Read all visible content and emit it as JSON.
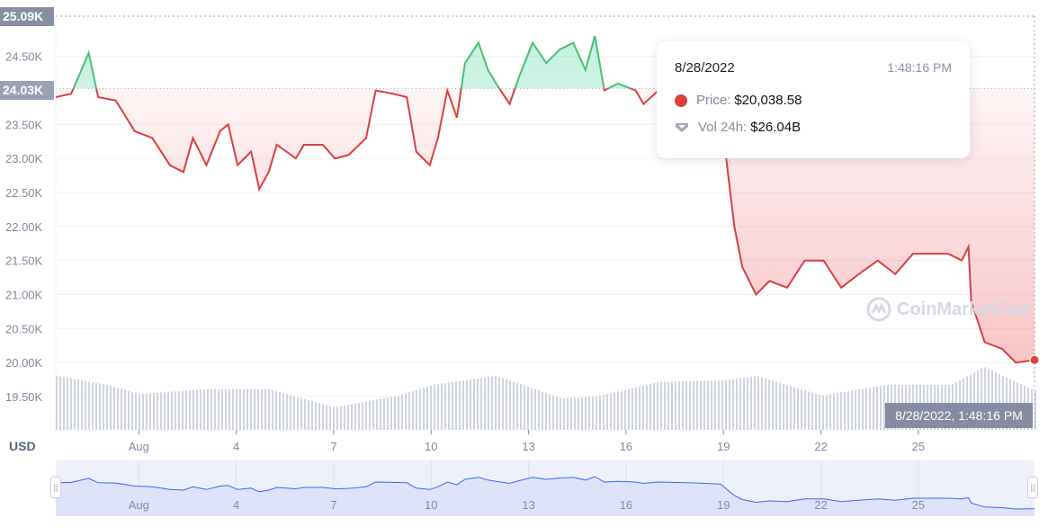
{
  "chart_data": {
    "type": "line",
    "currency_label": "USD",
    "y_ticks": [
      "19.50K",
      "20.00K",
      "20.50K",
      "21.00K",
      "21.50K",
      "22.00K",
      "22.50K",
      "23.00K",
      "23.50K",
      "24.50K"
    ],
    "y_tick_values": [
      19500,
      20000,
      20500,
      21000,
      21500,
      22000,
      22500,
      23000,
      23500,
      24500
    ],
    "ylim": [
      19300,
      25090
    ],
    "y_max_label": "25.09K",
    "y_max": 25090,
    "y_ref_label": "24.03K",
    "y_ref": 24030,
    "x_ticks": [
      "Aug",
      "4",
      "7",
      "10",
      "13",
      "16",
      "19",
      "22",
      "25"
    ],
    "x_tick_dates": [
      "2022-08-01",
      "2022-08-04",
      "2022-08-07",
      "2022-08-10",
      "2022-08-13",
      "2022-08-16",
      "2022-08-19",
      "2022-08-22",
      "2022-08-25"
    ],
    "xlim": [
      "2022-07-29T10:40",
      "2022-08-28T13:48"
    ],
    "colors": {
      "above": "#16c784",
      "below": "#ea3943",
      "volume": "#cfd3de",
      "navigator": "#3861fb"
    },
    "price": {
      "x": [
        "2022-07-29T10:40",
        "2022-07-29T22:00",
        "2022-07-30T11:00",
        "2022-07-30T18:00",
        "2022-07-31T07:00",
        "2022-07-31T21:00",
        "2022-08-01T10:00",
        "2022-08-01T23:00",
        "2022-08-02T09:00",
        "2022-08-02T16:00",
        "2022-08-03T02:00",
        "2022-08-03T12:00",
        "2022-08-03T18:00",
        "2022-08-04T01:00",
        "2022-08-04T11:00",
        "2022-08-04T17:00",
        "2022-08-05T00:00",
        "2022-08-05T06:00",
        "2022-08-05T20:00",
        "2022-08-06T02:00",
        "2022-08-06T16:00",
        "2022-08-07T01:00",
        "2022-08-07T11:00",
        "2022-08-08T00:00",
        "2022-08-08T07:00",
        "2022-08-08T20:00",
        "2022-08-09T06:00",
        "2022-08-09T13:00",
        "2022-08-09T23:00",
        "2022-08-10T05:00",
        "2022-08-10T12:00",
        "2022-08-10T19:00",
        "2022-08-11T01:00",
        "2022-08-11T11:00",
        "2022-08-11T18:00",
        "2022-08-12T00:00",
        "2022-08-12T10:00",
        "2022-08-12T17:00",
        "2022-08-13T03:00",
        "2022-08-13T13:00",
        "2022-08-13T23:00",
        "2022-08-14T09:00",
        "2022-08-14T18:00",
        "2022-08-15T01:00",
        "2022-08-15T08:00",
        "2022-08-15T18:00",
        "2022-08-16T07:00",
        "2022-08-16T13:00",
        "2022-08-17T00:00",
        "2022-08-17T23:00",
        "2022-08-18T22:00",
        "2022-08-19T02:00",
        "2022-08-19T08:00",
        "2022-08-19T14:00",
        "2022-08-20T00:00",
        "2022-08-20T10:00",
        "2022-08-20T23:00",
        "2022-08-21T12:00",
        "2022-08-22T02:00",
        "2022-08-22T15:00",
        "2022-08-23T04:00",
        "2022-08-23T18:00",
        "2022-08-24T07:00",
        "2022-08-24T20:00",
        "2022-08-25T09:00",
        "2022-08-25T22:00",
        "2022-08-26T08:00",
        "2022-08-26T13:00",
        "2022-08-26T15:00",
        "2022-08-27T01:00",
        "2022-08-27T14:00",
        "2022-08-28T00:00",
        "2022-08-28T13:48"
      ],
      "y": [
        23900,
        23950,
        24550,
        23900,
        23850,
        23400,
        23300,
        22900,
        22800,
        23300,
        22900,
        23400,
        23500,
        22900,
        23100,
        22550,
        22800,
        23200,
        23000,
        23200,
        23200,
        23000,
        23050,
        23300,
        24000,
        23950,
        23900,
        23100,
        22900,
        23300,
        24000,
        23600,
        24400,
        24700,
        24300,
        24100,
        23800,
        24200,
        24700,
        24400,
        24600,
        24700,
        24300,
        24800,
        24000,
        24100,
        24000,
        23800,
        24000,
        23900,
        23700,
        23000,
        22000,
        21400,
        21000,
        21200,
        21100,
        21500,
        21500,
        21100,
        21300,
        21500,
        21300,
        21600,
        21600,
        21600,
        21500,
        21700,
        20900,
        20300,
        20200,
        20000,
        20038.58
      ]
    },
    "volume_B": {
      "x": [
        "2022-07-29",
        "2022-07-31",
        "2022-08-01",
        "2022-08-03",
        "2022-08-05",
        "2022-08-07",
        "2022-08-09",
        "2022-08-10",
        "2022-08-12",
        "2022-08-14",
        "2022-08-15",
        "2022-08-17",
        "2022-08-19",
        "2022-08-20",
        "2022-08-22",
        "2022-08-24",
        "2022-08-26",
        "2022-08-27",
        "2022-08-28T13:48"
      ],
      "y": [
        38,
        30,
        24,
        27,
        27,
        15,
        23,
        30,
        36,
        21,
        22,
        32,
        33,
        36,
        23,
        30,
        30,
        42,
        26.04
      ]
    }
  },
  "tooltip": {
    "date": "8/28/2022",
    "time": "1:48:16 PM",
    "price_label": "Price:",
    "price_value": "$20,038.58",
    "vol_label": "Vol 24h:",
    "vol_value": "$26.04B"
  },
  "hover_label": "8/28/2022, 1:48:16 PM",
  "watermark": "CoinMarketCap"
}
